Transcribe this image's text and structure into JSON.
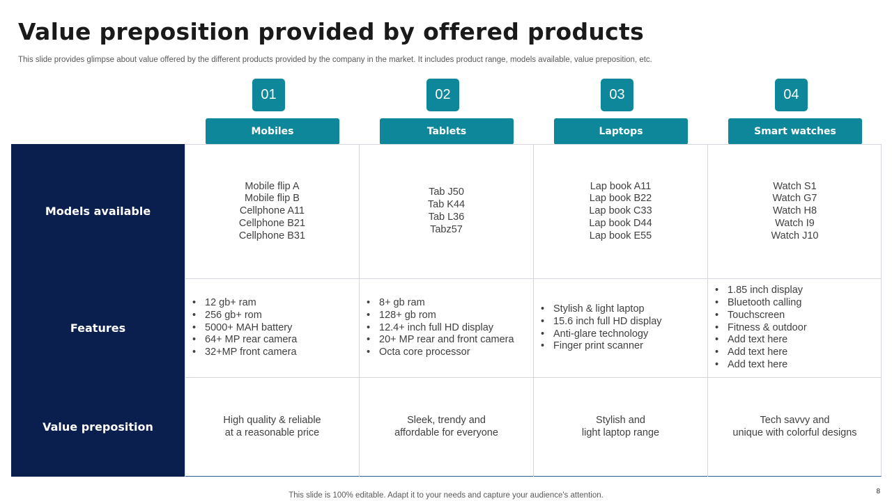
{
  "title": "Value preposition provided by offered products",
  "subtitle": "This slide provides glimpse about value offered by the different products provided by the company in the market. It includes product range, models available, value preposition, etc.",
  "products": [
    {
      "number": "01",
      "name": "Mobiles"
    },
    {
      "number": "02",
      "name": "Tablets"
    },
    {
      "number": "03",
      "name": "Laptops"
    },
    {
      "number": "04",
      "name": "Smart watches"
    }
  ],
  "row_headers": {
    "models": "Models available",
    "features": "Features",
    "value": "Value preposition"
  },
  "models": [
    [
      "Mobile flip A",
      "Mobile flip B",
      "Cellphone A11",
      "Cellphone B21",
      "Cellphone B31"
    ],
    [
      "Tab J50",
      "Tab K44",
      "Tab L36",
      "Tabz57"
    ],
    [
      "Lap book A11",
      "Lap book B22",
      "Lap book C33",
      "Lap book D44",
      "Lap book E55"
    ],
    [
      "Watch S1",
      "Watch G7",
      "Watch H8",
      "Watch I9",
      "Watch J10"
    ]
  ],
  "features": [
    [
      "12 gb+ ram",
      "256 gb+ rom",
      "5000+ MAH  battery",
      "64+ MP rear camera",
      "32+MP front camera"
    ],
    [
      "8+ gb ram",
      "128+ gb rom",
      "12.4+ inch full HD display",
      "20+ MP rear and front camera",
      "Octa core processor"
    ],
    [
      "Stylish & light laptop",
      "15.6 inch full HD display",
      "Anti-glare technology",
      "Finger print scanner"
    ],
    [
      "1.85 inch display",
      "Bluetooth calling",
      "Touchscreen",
      "Fitness & outdoor",
      "Add text here",
      "Add text here",
      "Add text here"
    ]
  ],
  "value_preposition": [
    [
      "High quality & reliable",
      "at a reasonable price"
    ],
    [
      "Sleek, trendy and",
      "affordable for everyone"
    ],
    [
      "Stylish and",
      "light laptop range"
    ],
    [
      "Tech savvy and",
      "unique with colorful designs"
    ]
  ],
  "footer": "This slide is 100% editable. Adapt it to your needs and capture your audience's attention.",
  "page_number": "8",
  "colors": {
    "teal": "#0d8799",
    "navy": "#0a1f4e"
  }
}
